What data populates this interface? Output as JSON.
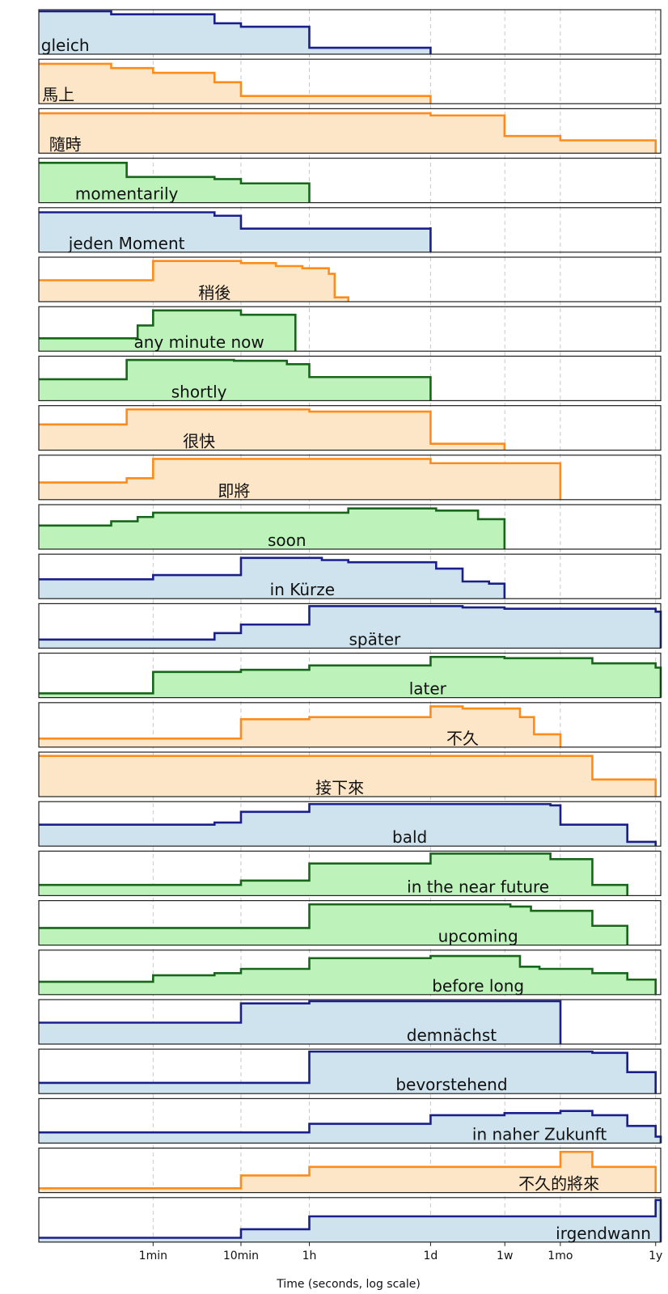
{
  "chart_data": {
    "type": "area",
    "xlabel": "Time (seconds, log scale)",
    "xscale": "log",
    "xlim": [
      3,
      36000000
    ],
    "grid": "vertical dashed at ticks",
    "ticks": [
      {
        "label": "1min",
        "value": 60
      },
      {
        "label": "10min",
        "value": 600
      },
      {
        "label": "1h",
        "value": 3600
      },
      {
        "label": "1d",
        "value": 86400
      },
      {
        "label": "1w",
        "value": 604800
      },
      {
        "label": "1mo",
        "value": 2592000
      },
      {
        "label": "1y",
        "value": 31536000
      }
    ],
    "colors": {
      "blue": {
        "line": "#1a1f8c",
        "fill": "#cfe3ee"
      },
      "orange": {
        "line": "#ff8c1a",
        "fill": "#fde6c8"
      },
      "green": {
        "line": "#17661a",
        "fill": "#bdf2bb"
      }
    },
    "series": [
      {
        "name": "gleich",
        "color": "blue",
        "label_x": 6,
        "steps": [
          [
            3,
            1
          ],
          [
            20,
            0.93
          ],
          [
            300,
            0.72
          ],
          [
            600,
            0.64
          ],
          [
            3600,
            0.15
          ],
          [
            86400,
            0.1
          ]
        ]
      },
      {
        "name": "馬上",
        "color": "orange",
        "label_x": 5,
        "steps": [
          [
            3,
            0.93
          ],
          [
            20,
            0.83
          ],
          [
            60,
            0.72
          ],
          [
            300,
            0.5
          ],
          [
            600,
            0.18
          ],
          [
            86400,
            0.1
          ]
        ]
      },
      {
        "name": "隨時",
        "color": "orange",
        "label_x": 6,
        "steps": [
          [
            3,
            0.93
          ],
          [
            60,
            0.93
          ],
          [
            86400,
            0.88
          ],
          [
            600000,
            0.4
          ],
          [
            2592000,
            0.3
          ],
          [
            31536000,
            0.22
          ]
        ]
      },
      {
        "name": "momentarily",
        "color": "green",
        "label_x": 30,
        "steps": [
          [
            3,
            0.93
          ],
          [
            30,
            0.6
          ],
          [
            300,
            0.55
          ],
          [
            600,
            0.45
          ],
          [
            3600,
            0.35
          ]
        ]
      },
      {
        "name": "jeden Moment",
        "color": "blue",
        "label_x": 30,
        "steps": [
          [
            3,
            0.93
          ],
          [
            60,
            0.93
          ],
          [
            300,
            0.85
          ],
          [
            600,
            0.55
          ],
          [
            86400,
            0.58
          ]
        ]
      },
      {
        "name": "稍後",
        "color": "orange",
        "label_x": 300,
        "steps": [
          [
            3,
            0.5
          ],
          [
            60,
            0.95
          ],
          [
            600,
            0.9
          ],
          [
            1500,
            0.83
          ],
          [
            3000,
            0.78
          ],
          [
            6000,
            0.65
          ],
          [
            7000,
            0.1
          ],
          [
            10000,
            0.1
          ]
        ]
      },
      {
        "name": "any minute now",
        "color": "green",
        "label_x": 200,
        "steps": [
          [
            3,
            0.3
          ],
          [
            40,
            0.6
          ],
          [
            60,
            0.95
          ],
          [
            600,
            0.85
          ],
          [
            2500,
            0.85
          ]
        ]
      },
      {
        "name": "shortly",
        "color": "green",
        "label_x": 200,
        "steps": [
          [
            3,
            0.5
          ],
          [
            30,
            0.95
          ],
          [
            500,
            0.93
          ],
          [
            2000,
            0.85
          ],
          [
            3600,
            0.55
          ],
          [
            86400,
            0.55
          ]
        ]
      },
      {
        "name": "很快",
        "color": "orange",
        "label_x": 200,
        "steps": [
          [
            3,
            0.6
          ],
          [
            30,
            0.95
          ],
          [
            3600,
            0.9
          ],
          [
            86400,
            0.15
          ],
          [
            600000,
            0.15
          ]
        ]
      },
      {
        "name": "即將",
        "color": "orange",
        "label_x": 500,
        "steps": [
          [
            3,
            0.4
          ],
          [
            30,
            0.5
          ],
          [
            60,
            0.95
          ],
          [
            86400,
            0.85
          ],
          [
            2592000,
            0.85
          ]
        ]
      },
      {
        "name": "soon",
        "color": "green",
        "label_x": 2000,
        "steps": [
          [
            3,
            0.55
          ],
          [
            20,
            0.65
          ],
          [
            40,
            0.75
          ],
          [
            60,
            0.85
          ],
          [
            10000.0,
            0.95
          ],
          [
            100000.0,
            0.9
          ],
          [
            300000.0,
            0.7
          ],
          [
            600000.0,
            0.6
          ]
        ]
      },
      {
        "name": "in Kürze",
        "color": "blue",
        "label_x": 3000,
        "steps": [
          [
            3,
            0.45
          ],
          [
            60,
            0.55
          ],
          [
            600,
            0.95
          ],
          [
            5000,
            0.9
          ],
          [
            10000.0,
            0.85
          ],
          [
            100000.0,
            0.7
          ],
          [
            200000.0,
            0.4
          ],
          [
            400000.0,
            0.35
          ],
          [
            600000.0,
            0.3
          ]
        ]
      },
      {
        "name": "später",
        "color": "blue",
        "label_x": 20000,
        "steps": [
          [
            3,
            0.2
          ],
          [
            300,
            0.35
          ],
          [
            600,
            0.55
          ],
          [
            3600,
            0.98
          ],
          [
            200000.0,
            0.95
          ],
          [
            600000.0,
            0.92
          ],
          [
            31500000.0,
            0.85
          ],
          [
            50000000.0,
            0.3
          ],
          [
            65000000.0,
            0.1
          ]
        ]
      },
      {
        "name": "later",
        "color": "green",
        "label_x": 80000,
        "steps": [
          [
            3,
            0.1
          ],
          [
            60,
            0.6
          ],
          [
            600,
            0.65
          ],
          [
            3600,
            0.75
          ],
          [
            86400,
            0.95
          ],
          [
            600000,
            0.92
          ],
          [
            6000000.0,
            0.8
          ],
          [
            31500000.0,
            0.7
          ],
          [
            50000000.0,
            0.3
          ]
        ]
      },
      {
        "name": "不久",
        "color": "orange",
        "label_x": 200000,
        "steps": [
          [
            3,
            0.2
          ],
          [
            600,
            0.65
          ],
          [
            3600,
            0.7
          ],
          [
            86400,
            0.95
          ],
          [
            200000.0,
            0.9
          ],
          [
            900000.0,
            0.7
          ],
          [
            1300000.0,
            0.3
          ],
          [
            2600000.0,
            0.3
          ]
        ]
      },
      {
        "name": "接下來",
        "color": "orange",
        "label_x": 8000,
        "steps": [
          [
            3,
            0.95
          ],
          [
            2600000.0,
            0.95
          ],
          [
            6000000.0,
            0.4
          ],
          [
            31500000.0,
            0.35
          ]
        ]
      },
      {
        "name": "bald",
        "color": "blue",
        "label_x": 50000,
        "steps": [
          [
            3,
            0.5
          ],
          [
            300,
            0.55
          ],
          [
            600,
            0.8
          ],
          [
            3600,
            0.98
          ],
          [
            2000000.0,
            0.95
          ],
          [
            2600000.0,
            0.5
          ],
          [
            15000000.0,
            0.1
          ],
          [
            31500000.0,
            0.05
          ]
        ]
      },
      {
        "name": "in the near future",
        "color": "green",
        "label_x": 300000,
        "steps": [
          [
            3,
            0.25
          ],
          [
            600,
            0.35
          ],
          [
            3600,
            0.75
          ],
          [
            86400,
            0.98
          ],
          [
            2000000.0,
            0.85
          ],
          [
            6000000.0,
            0.25
          ],
          [
            15000000.0,
            0.25
          ]
        ]
      },
      {
        "name": "upcoming",
        "color": "green",
        "label_x": 300000,
        "steps": [
          [
            3,
            0.4
          ],
          [
            3600,
            0.95
          ],
          [
            700000.0,
            0.9
          ],
          [
            1200000.0,
            0.8
          ],
          [
            2600000.0,
            0.8
          ],
          [
            6000000.0,
            0.45
          ],
          [
            15000000.0,
            0.45
          ]
        ]
      },
      {
        "name": "before long",
        "color": "green",
        "label_x": 300000,
        "steps": [
          [
            3,
            0.3
          ],
          [
            60,
            0.45
          ],
          [
            300,
            0.5
          ],
          [
            600,
            0.6
          ],
          [
            3600,
            0.85
          ],
          [
            86400,
            0.9
          ],
          [
            900000.0,
            0.65
          ],
          [
            1500000.0,
            0.6
          ],
          [
            6000000.0,
            0.5
          ],
          [
            15000000.0,
            0.35
          ],
          [
            31500000.0,
            0.1
          ]
        ]
      },
      {
        "name": "demnächst",
        "color": "blue",
        "label_x": 150000,
        "steps": [
          [
            3,
            0.5
          ],
          [
            600,
            0.95
          ],
          [
            3600,
            1
          ],
          [
            2600000.0,
            0.5
          ]
        ]
      },
      {
        "name": "bevorstehend",
        "color": "blue",
        "label_x": 150000,
        "steps": [
          [
            3,
            0.25
          ],
          [
            3600,
            0.98
          ],
          [
            6000000.0,
            0.95
          ],
          [
            15000000.0,
            0.5
          ],
          [
            31500000.0,
            0.25
          ]
        ]
      },
      {
        "name": "in naher Zukunft",
        "color": "blue",
        "label_x": 1500000,
        "steps": [
          [
            3,
            0.25
          ],
          [
            3600,
            0.45
          ],
          [
            86400,
            0.65
          ],
          [
            600000.0,
            0.7
          ],
          [
            2600000.0,
            0.75
          ],
          [
            6000000.0,
            0.65
          ],
          [
            15000000.0,
            0.4
          ],
          [
            31500000.0,
            0.15
          ],
          [
            50000000.0,
            0.1
          ],
          [
            65000000.0,
            0.1
          ]
        ]
      },
      {
        "name": "不久的將來",
        "color": "orange",
        "label_x": 2500000,
        "steps": [
          [
            3,
            0.1
          ],
          [
            600,
            0.4
          ],
          [
            3600,
            0.6
          ],
          [
            2600000.0,
            0.95
          ],
          [
            6000000.0,
            0.6
          ],
          [
            31500000.0,
            0.1
          ]
        ]
      },
      {
        "name": "irgendwann",
        "color": "blue",
        "label_x": 8000000,
        "steps": [
          [
            3,
            0.1
          ],
          [
            600,
            0.3
          ],
          [
            3600,
            0.6
          ],
          [
            31500000.0,
            0.98
          ],
          [
            50000000.0,
            0.85
          ],
          [
            70000000.0,
            0.75
          ],
          [
            100000000.0,
            0.7
          ],
          [
            36000000.0,
            0.7
          ]
        ]
      }
    ]
  }
}
